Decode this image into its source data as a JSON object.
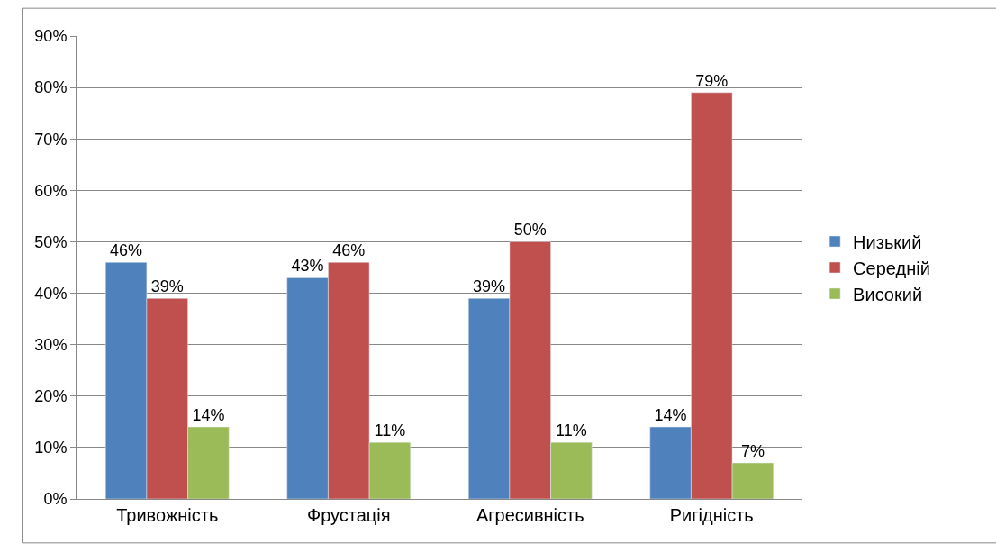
{
  "chart_data": {
    "type": "bar",
    "categories": [
      "Тривожність",
      "Фрустація",
      "Агресивність",
      "Ригідність"
    ],
    "series": [
      {
        "name": "Низький",
        "color": "#4f81bd",
        "values": [
          46,
          43,
          39,
          14
        ],
        "value_labels": [
          "46%",
          "43%",
          "39%",
          "14%"
        ]
      },
      {
        "name": "Середній",
        "color": "#c0504d",
        "values": [
          39,
          46,
          50,
          79
        ],
        "value_labels": [
          "39%",
          "46%",
          "50%",
          "79%"
        ]
      },
      {
        "name": "Високий",
        "color": "#9bbb59",
        "values": [
          14,
          11,
          11,
          7
        ],
        "value_labels": [
          "14%",
          "11%",
          "11%",
          "7%"
        ]
      }
    ],
    "ylim": [
      0,
      90
    ],
    "yticks": [
      {
        "value": 0,
        "label": "0%"
      },
      {
        "value": 10,
        "label": "10%"
      },
      {
        "value": 20,
        "label": "20%"
      },
      {
        "value": 30,
        "label": "30%"
      },
      {
        "value": 40,
        "label": "40%"
      },
      {
        "value": 50,
        "label": "50%"
      },
      {
        "value": 60,
        "label": "60%"
      },
      {
        "value": 70,
        "label": "70%"
      },
      {
        "value": 80,
        "label": "80%"
      },
      {
        "value": 90,
        "label": "90%"
      }
    ],
    "grid": "y",
    "legend": "right"
  }
}
